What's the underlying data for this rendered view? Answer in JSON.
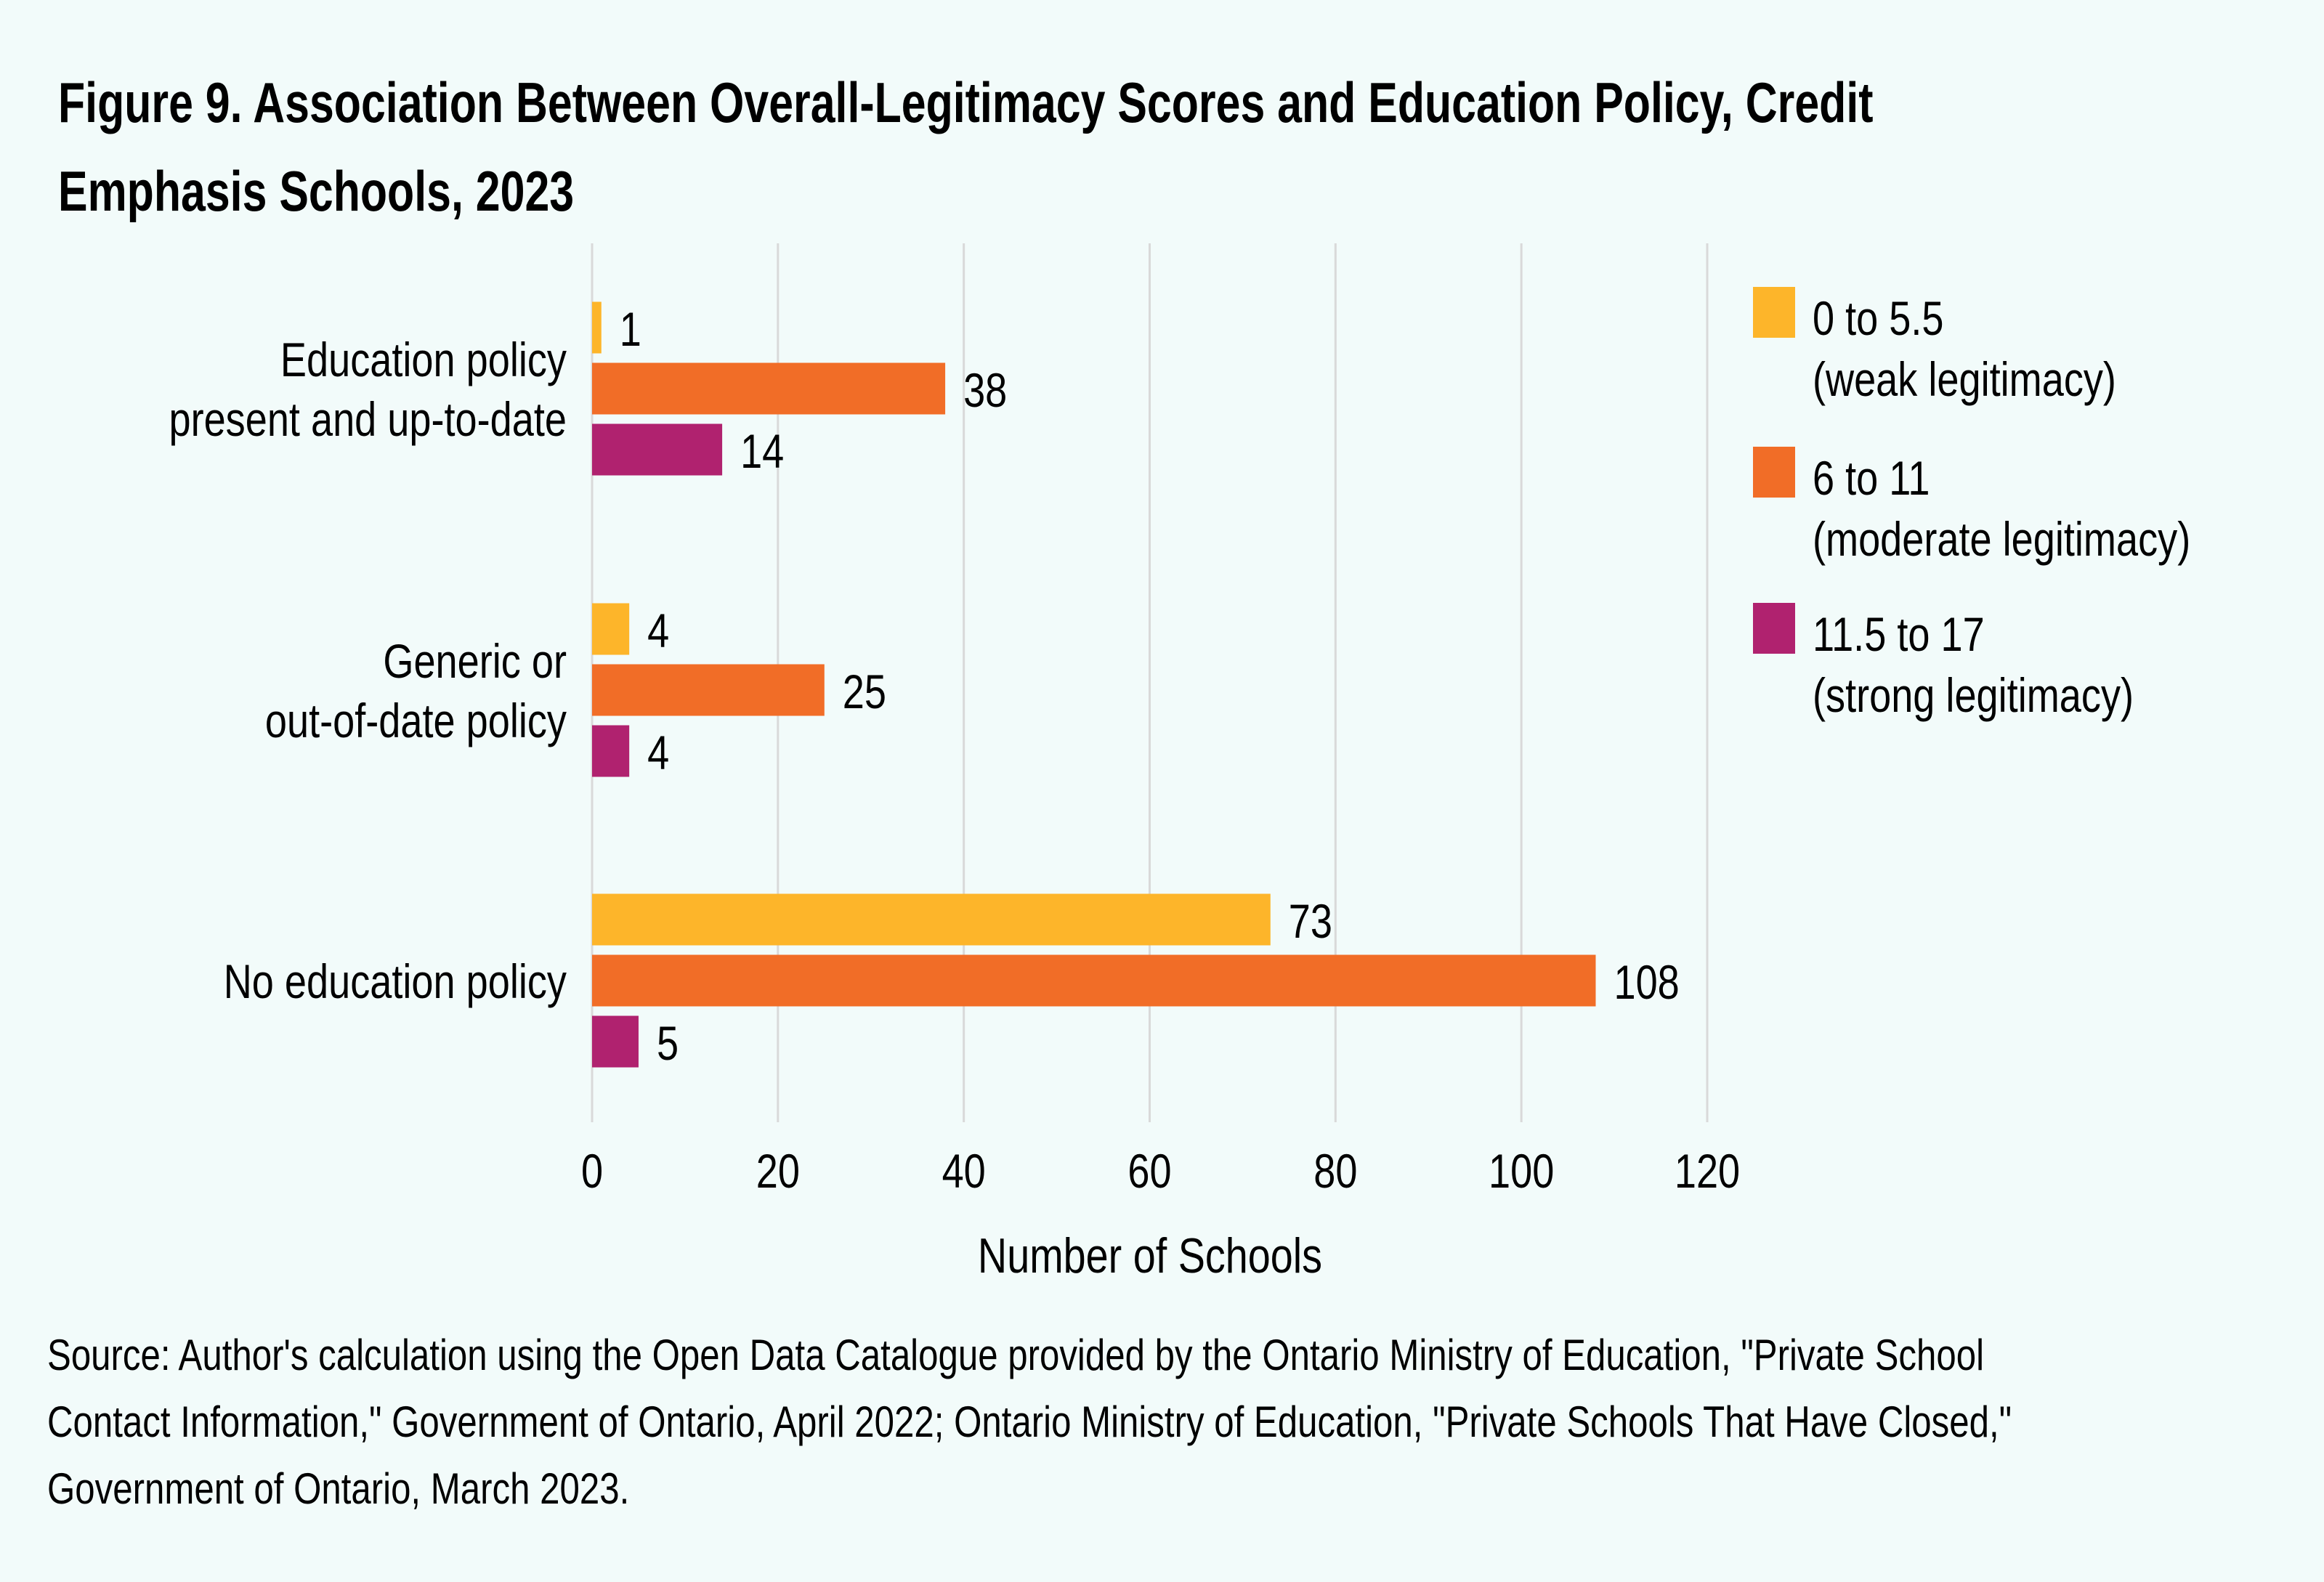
{
  "title": "Figure 9. Association Between Overall-Legitimacy Scores and Education Policy, Credit Emphasis Schools, 2023",
  "title_lines": [
    "Figure 9. Association Between Overall-Legitimacy Scores and Education Policy, Credit",
    "Emphasis Schools, 2023"
  ],
  "source_lines": [
    "Source: Author's calculation using the Open Data Catalogue provided by the Ontario Ministry of Education, \"Private School",
    "Contact Information,\" Government of Ontario, April 2022; Ontario Ministry of Education, \"Private Schools That Have Closed,\"",
    "Government of Ontario, March 2023."
  ],
  "chart_data": {
    "type": "bar",
    "orientation": "horizontal",
    "title": "Figure 9. Association Between Overall-Legitimacy Scores and Education Policy, Credit Emphasis Schools, 2023",
    "categories": [
      [
        "Education policy",
        "present and up-to-date"
      ],
      [
        "Generic or",
        "out-of-date policy"
      ],
      [
        "No education policy"
      ]
    ],
    "series": [
      {
        "name": "0 to 5.5",
        "sublabel": "(weak legitimacy)",
        "color": "#fdb52a",
        "values": [
          1,
          4,
          73
        ]
      },
      {
        "name": "6 to 11",
        "sublabel": "(moderate legitimacy)",
        "color": "#f16d27",
        "values": [
          38,
          25,
          108
        ]
      },
      {
        "name": "11.5 to 17",
        "sublabel": "(strong legitimacy)",
        "color": "#b0226f",
        "values": [
          14,
          4,
          5
        ]
      }
    ],
    "xlabel": "Number of Schools",
    "ylabel": "",
    "xlim": [
      0,
      120
    ],
    "xticks": [
      0,
      20,
      40,
      60,
      80,
      100,
      120
    ],
    "grid": true,
    "gridline_color": "#d9d9d9",
    "legend_position": "right",
    "data_labels": true
  }
}
